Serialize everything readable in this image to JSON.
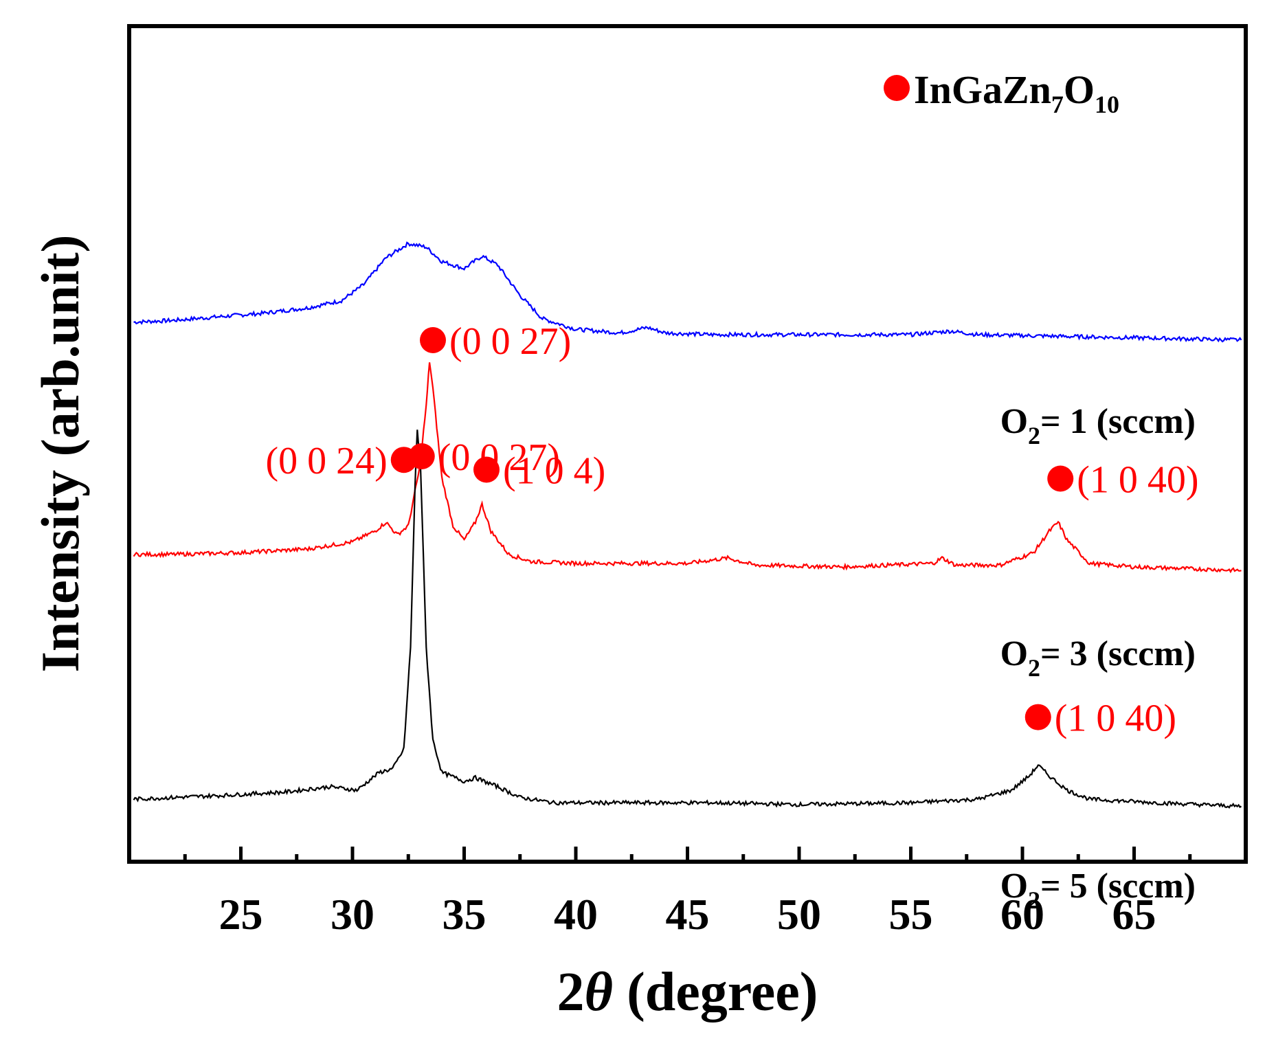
{
  "chart_data": {
    "type": "line",
    "title": "",
    "xlabel_number": "2",
    "xlabel_symbol": "θ",
    "xlabel_rest": " (degree)",
    "ylabel": "Intensity (arb.unit)",
    "xlim": [
      20,
      70
    ],
    "x_ticks": [
      25,
      30,
      35,
      40,
      45,
      50,
      55,
      60,
      65
    ],
    "x_tick_labels": [
      "25",
      "30",
      "35",
      "40",
      "45",
      "50",
      "55",
      "60",
      "65"
    ],
    "x_minor_ticks": [
      22.5,
      27.5,
      32.5,
      37.5,
      42.5,
      47.5,
      52.5,
      57.5,
      62.5,
      67.5
    ],
    "y_ticks_shown": false,
    "legend": {
      "marker_color": "#ff0000",
      "text_main": "InGaZn",
      "sub1": "7",
      "text_mid": "O",
      "sub2": "10",
      "position": "top-right"
    },
    "series": [
      {
        "name_prefix": "O",
        "name_sub": "2",
        "name_suffix": "= 1 (sccm)",
        "color": "#0000ff",
        "offset": 2.9,
        "points": [
          [
            20.2,
            0.12
          ],
          [
            22,
            0.13
          ],
          [
            24,
            0.15
          ],
          [
            26,
            0.17
          ],
          [
            28,
            0.2
          ],
          [
            29.5,
            0.24
          ],
          [
            30.5,
            0.33
          ],
          [
            31.5,
            0.48
          ],
          [
            32.5,
            0.56
          ],
          [
            33.3,
            0.54
          ],
          [
            34,
            0.46
          ],
          [
            35,
            0.42
          ],
          [
            35.8,
            0.49
          ],
          [
            36.5,
            0.44
          ],
          [
            37.5,
            0.27
          ],
          [
            38.5,
            0.14
          ],
          [
            40,
            0.08
          ],
          [
            42,
            0.06
          ],
          [
            43.2,
            0.09
          ],
          [
            44,
            0.06
          ],
          [
            46,
            0.05
          ],
          [
            50,
            0.05
          ],
          [
            55,
            0.05
          ],
          [
            56.8,
            0.07
          ],
          [
            58,
            0.05
          ],
          [
            62,
            0.04
          ],
          [
            66,
            0.03
          ],
          [
            69.8,
            0.02
          ]
        ]
      },
      {
        "name_prefix": "O",
        "name_sub": "2",
        "name_suffix": "= 3 (sccm)",
        "color": "#ff0000",
        "offset": 1.6,
        "points": [
          [
            20.2,
            0.12
          ],
          [
            22,
            0.12
          ],
          [
            25,
            0.13
          ],
          [
            28,
            0.15
          ],
          [
            30,
            0.19
          ],
          [
            31,
            0.25
          ],
          [
            31.5,
            0.3
          ],
          [
            32,
            0.23
          ],
          [
            32.5,
            0.28
          ],
          [
            33,
            0.6
          ],
          [
            33.3,
            0.95
          ],
          [
            33.45,
            1.2
          ],
          [
            33.6,
            1.05
          ],
          [
            34,
            0.55
          ],
          [
            34.5,
            0.28
          ],
          [
            35,
            0.2
          ],
          [
            35.5,
            0.3
          ],
          [
            35.8,
            0.4
          ],
          [
            36.2,
            0.25
          ],
          [
            37,
            0.12
          ],
          [
            38,
            0.08
          ],
          [
            40,
            0.07
          ],
          [
            45,
            0.07
          ],
          [
            46.8,
            0.1
          ],
          [
            48,
            0.06
          ],
          [
            52,
            0.05
          ],
          [
            56,
            0.07
          ],
          [
            56.4,
            0.1
          ],
          [
            57,
            0.06
          ],
          [
            59,
            0.06
          ],
          [
            60.5,
            0.13
          ],
          [
            61.2,
            0.25
          ],
          [
            61.6,
            0.3
          ],
          [
            62,
            0.2
          ],
          [
            63,
            0.07
          ],
          [
            65,
            0.05
          ],
          [
            69.8,
            0.03
          ]
        ]
      },
      {
        "name_prefix": "O",
        "name_sub": "2",
        "name_suffix": "= 5 (sccm)",
        "color": "#000000",
        "offset": 0.3,
        "points": [
          [
            20.2,
            0.05
          ],
          [
            24,
            0.07
          ],
          [
            27,
            0.09
          ],
          [
            29,
            0.12
          ],
          [
            30.2,
            0.1
          ],
          [
            31.2,
            0.2
          ],
          [
            31.8,
            0.22
          ],
          [
            32.3,
            0.33
          ],
          [
            32.6,
            0.9
          ],
          [
            32.8,
            1.8
          ],
          [
            32.9,
            2.12
          ],
          [
            33.05,
            1.9
          ],
          [
            33.3,
            0.9
          ],
          [
            33.6,
            0.38
          ],
          [
            34,
            0.2
          ],
          [
            35,
            0.15
          ],
          [
            35.5,
            0.17
          ],
          [
            36.5,
            0.12
          ],
          [
            37.5,
            0.06
          ],
          [
            39,
            0.03
          ],
          [
            42,
            0.03
          ],
          [
            46,
            0.03
          ],
          [
            50,
            0.02
          ],
          [
            55,
            0.03
          ],
          [
            58,
            0.05
          ],
          [
            59.5,
            0.1
          ],
          [
            60.3,
            0.18
          ],
          [
            60.7,
            0.24
          ],
          [
            61.2,
            0.18
          ],
          [
            62,
            0.1
          ],
          [
            63,
            0.05
          ],
          [
            66,
            0.03
          ],
          [
            69.8,
            0.01
          ]
        ]
      }
    ],
    "annotations": [
      {
        "text": "(0 0 27)",
        "x": 33.6,
        "series": 1,
        "dot_side": "left"
      },
      {
        "text": "(0 0 24)",
        "x": 32.3,
        "series": 1,
        "dot_side": "right"
      },
      {
        "text": "(1 0 4)",
        "x": 36.0,
        "series": 1,
        "dot_side": "left"
      },
      {
        "text": "(1 0 40)",
        "x": 61.7,
        "series": 1,
        "dot_side": "left"
      },
      {
        "text": "(0 0 27)",
        "x": 33.1,
        "series": 2,
        "dot_side": "left"
      },
      {
        "text": "(1 0 40)",
        "x": 60.7,
        "series": 2,
        "dot_side": "left"
      }
    ]
  }
}
